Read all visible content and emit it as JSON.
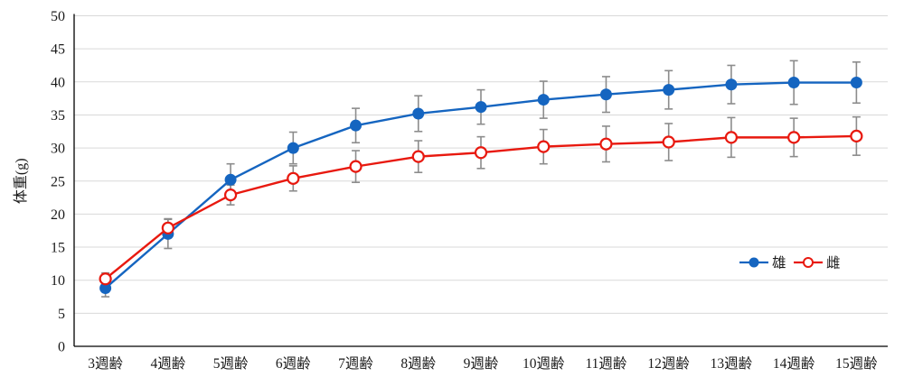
{
  "chart_data": {
    "type": "line",
    "title": "",
    "xlabel": "",
    "ylabel": "体重(g)",
    "ylim": [
      0,
      50
    ],
    "ytick_step": 5,
    "grid": true,
    "legend_position": "right-middle",
    "categories": [
      "3週齢",
      "4週齢",
      "5週齢",
      "6週齢",
      "7週齢",
      "8週齢",
      "9週齢",
      "10週齢",
      "11週齢",
      "12週齢",
      "13週齢",
      "14週齢",
      "15週齢"
    ],
    "series": [
      {
        "name": "雄",
        "marker": "filled-circle",
        "color": "#1565C0",
        "values": [
          8.8,
          17.0,
          25.2,
          30.0,
          33.4,
          35.2,
          36.2,
          37.3,
          38.1,
          38.8,
          39.6,
          39.9,
          39.9
        ],
        "errors": [
          1.3,
          2.2,
          2.4,
          2.4,
          2.6,
          2.7,
          2.6,
          2.8,
          2.7,
          2.9,
          2.9,
          3.3,
          3.1
        ]
      },
      {
        "name": "雌",
        "marker": "open-circle",
        "color": "#E8190F",
        "values": [
          10.2,
          17.9,
          22.9,
          25.4,
          27.2,
          28.7,
          29.3,
          30.2,
          30.6,
          30.9,
          31.6,
          31.6,
          31.8
        ],
        "errors": [
          0.9,
          1.4,
          1.5,
          1.9,
          2.4,
          2.4,
          2.4,
          2.6,
          2.7,
          2.8,
          3.0,
          2.9,
          2.9
        ]
      }
    ],
    "colors": {
      "gridline": "#D9D9D9",
      "axis": "#000000",
      "error_bar": "#8C8C8C",
      "text": "#1a1a1a"
    }
  }
}
